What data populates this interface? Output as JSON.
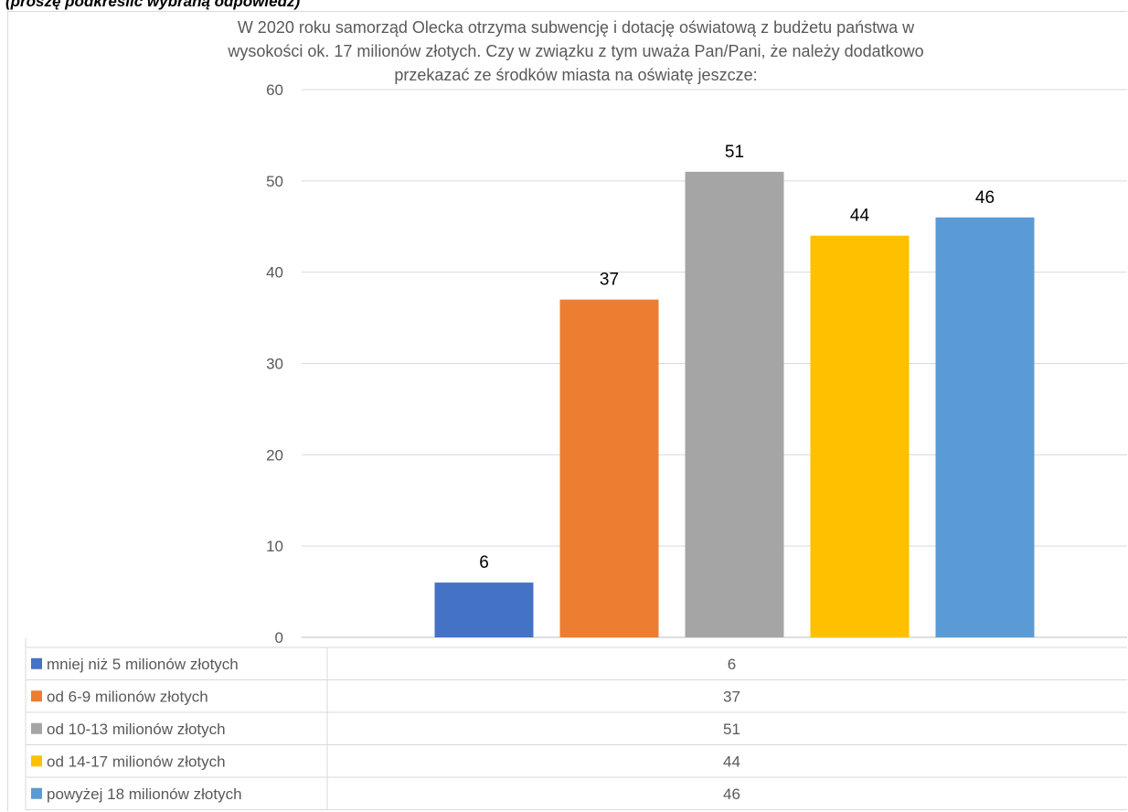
{
  "header_note": "(proszę podkreślić wybraną odpowiedź)",
  "chart_data": {
    "type": "bar",
    "title_lines": [
      "W 2020 roku samorząd Olecka otrzyma subwencję i dotację oświatową z budżetu państwa w",
      "wysokości ok. 17 milionów złotych. Czy w związku z tym uważa Pan/Pani, że należy dodatkowo",
      "przekazać ze środków miasta na oświatę jeszcze:"
    ],
    "categories": [
      "mniej niż 5 milionów złotych",
      "od 6-9 milionów złotych",
      "od 10-13 milionów złotych",
      "od 14-17 milionów złotych",
      "powyżej 18 milionów złotych"
    ],
    "values": [
      6,
      37,
      51,
      44,
      46
    ],
    "colors": [
      "#4472c4",
      "#ed7d31",
      "#a5a5a5",
      "#ffc000",
      "#5b9bd5"
    ],
    "ylim": [
      0,
      60
    ],
    "yticks": [
      0,
      10,
      20,
      30,
      40,
      50,
      60
    ],
    "grid": true,
    "legend": "data-table-below",
    "xlabel": "",
    "ylabel": ""
  }
}
